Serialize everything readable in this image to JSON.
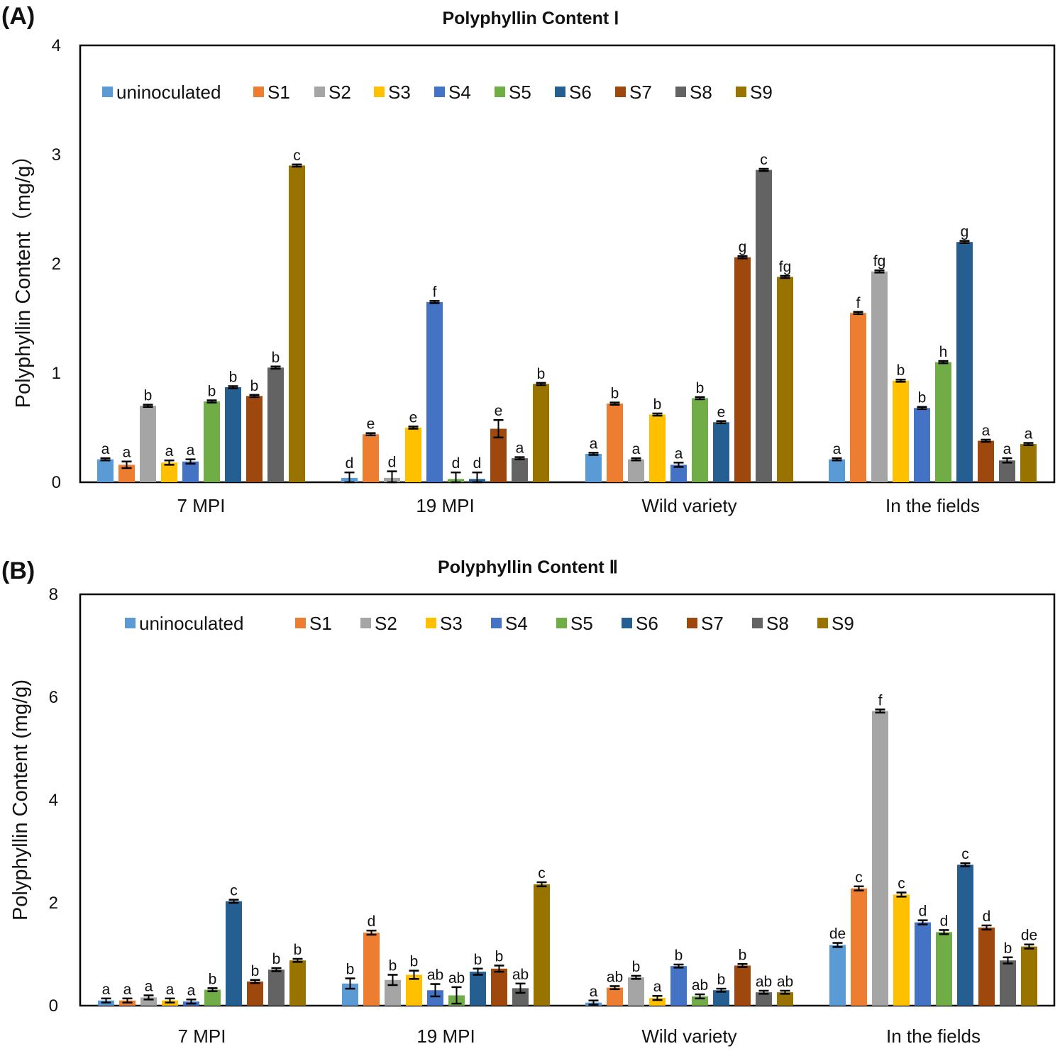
{
  "panels": [
    {
      "label": "(A)"
    },
    {
      "label": "(B)"
    }
  ],
  "chart_data": [
    {
      "type": "bar",
      "title": "Polyphyllin Content Ⅰ",
      "xlabel": "",
      "ylabel": "Polyphyllin Content（mg/g）",
      "ylim": [
        0,
        4
      ],
      "yticks": [
        "0",
        "1",
        "2",
        "3",
        "4"
      ],
      "ytick_values": [
        0,
        1,
        2,
        3,
        4
      ],
      "legend_position": "top",
      "grid": false,
      "categories": [
        "7 MPI",
        "19 MPI",
        "Wild variety",
        "In the fields"
      ],
      "series": [
        {
          "name": "uninoculated",
          "color": "#5B9BD5",
          "values": [
            0.21,
            0.04,
            0.26,
            0.21
          ],
          "errors": [
            0.01,
            0.05,
            0.01,
            0.01
          ],
          "labels": [
            "a",
            "d",
            "a",
            "a"
          ]
        },
        {
          "name": "S1",
          "color": "#ED7D31",
          "values": [
            0.16,
            0.44,
            0.72,
            1.55
          ],
          "errors": [
            0.03,
            0.01,
            0.01,
            0.01
          ],
          "labels": [
            "a",
            "e",
            "b",
            "f"
          ]
        },
        {
          "name": "S2",
          "color": "#A5A5A5",
          "values": [
            0.7,
            0.04,
            0.21,
            1.93
          ],
          "errors": [
            0.01,
            0.06,
            0.01,
            0.01
          ],
          "labels": [
            "b",
            "d",
            "a",
            "fg"
          ]
        },
        {
          "name": "S3",
          "color": "#FFC000",
          "values": [
            0.18,
            0.5,
            0.62,
            0.93
          ],
          "errors": [
            0.02,
            0.01,
            0.01,
            0.01
          ],
          "labels": [
            "a",
            "e",
            "b",
            "b"
          ]
        },
        {
          "name": "S4",
          "color": "#4472C4",
          "values": [
            0.19,
            1.65,
            0.16,
            0.68
          ],
          "errors": [
            0.02,
            0.01,
            0.02,
            0.01
          ],
          "labels": [
            "a",
            "f",
            "a",
            "b"
          ]
        },
        {
          "name": "S5",
          "color": "#70AD47",
          "values": [
            0.74,
            0.03,
            0.77,
            1.1
          ],
          "errors": [
            0.01,
            0.06,
            0.01,
            0.01
          ],
          "labels": [
            "b",
            "d",
            "b",
            "h"
          ]
        },
        {
          "name": "S6",
          "color": "#255E91",
          "values": [
            0.87,
            0.03,
            0.55,
            2.2
          ],
          "errors": [
            0.01,
            0.06,
            0.01,
            0.01
          ],
          "labels": [
            "b",
            "d",
            "e",
            "g"
          ]
        },
        {
          "name": "S7",
          "color": "#9E480E",
          "values": [
            0.79,
            0.49,
            2.06,
            0.38
          ],
          "errors": [
            0.01,
            0.08,
            0.01,
            0.01
          ],
          "labels": [
            "b",
            "e",
            "g",
            "a"
          ]
        },
        {
          "name": "S8",
          "color": "#636363",
          "values": [
            1.05,
            0.22,
            2.86,
            0.2
          ],
          "errors": [
            0.01,
            0.01,
            0.01,
            0.02
          ],
          "labels": [
            "b",
            "a",
            "c",
            "a"
          ]
        },
        {
          "name": "S9",
          "color": "#997300",
          "values": [
            2.9,
            0.9,
            1.88,
            0.35
          ],
          "errors": [
            0.01,
            0.01,
            0.01,
            0.01
          ],
          "labels": [
            "c",
            "b",
            "fg",
            "a"
          ]
        }
      ]
    },
    {
      "type": "bar",
      "title": "Polyphyllin Content  Ⅱ",
      "xlabel": "",
      "ylabel": "Polyphyllin Content (mg/g)",
      "ylim": [
        0,
        8
      ],
      "yticks": [
        "0",
        "2",
        "4",
        "6",
        "8"
      ],
      "ytick_values": [
        0,
        2,
        4,
        6,
        8
      ],
      "legend_position": "top",
      "grid": false,
      "categories": [
        "7 MPI",
        "19 MPI",
        "Wild variety",
        "In the fields"
      ],
      "series": [
        {
          "name": "uninoculated",
          "color": "#5B9BD5",
          "values": [
            0.1,
            0.43,
            0.06,
            1.18
          ],
          "errors": [
            0.04,
            0.1,
            0.04,
            0.04
          ],
          "labels": [
            "a",
            "b",
            "a",
            "de"
          ]
        },
        {
          "name": "S1",
          "color": "#ED7D31",
          "values": [
            0.1,
            1.42,
            0.35,
            2.28
          ],
          "errors": [
            0.04,
            0.04,
            0.03,
            0.04
          ],
          "labels": [
            "a",
            "d",
            "ab",
            "c"
          ]
        },
        {
          "name": "S2",
          "color": "#A5A5A5",
          "values": [
            0.16,
            0.5,
            0.55,
            5.73
          ],
          "errors": [
            0.04,
            0.1,
            0.03,
            0.03
          ],
          "labels": [
            "a",
            "b",
            "b",
            "f"
          ]
        },
        {
          "name": "S3",
          "color": "#FFC000",
          "values": [
            0.1,
            0.6,
            0.15,
            2.16
          ],
          "errors": [
            0.04,
            0.08,
            0.04,
            0.04
          ],
          "labels": [
            "a",
            "b",
            "a",
            "c"
          ]
        },
        {
          "name": "S4",
          "color": "#4472C4",
          "values": [
            0.08,
            0.3,
            0.77,
            1.62
          ],
          "errors": [
            0.04,
            0.12,
            0.03,
            0.04
          ],
          "labels": [
            "a",
            "ab",
            "b",
            "d"
          ]
        },
        {
          "name": "S5",
          "color": "#70AD47",
          "values": [
            0.31,
            0.2,
            0.18,
            1.43
          ],
          "errors": [
            0.03,
            0.16,
            0.04,
            0.04
          ],
          "labels": [
            "b",
            "ab",
            "ab",
            "d"
          ]
        },
        {
          "name": "S6",
          "color": "#255E91",
          "values": [
            2.03,
            0.66,
            0.3,
            2.74
          ],
          "errors": [
            0.03,
            0.06,
            0.03,
            0.03
          ],
          "labels": [
            "c",
            "b",
            "b",
            "c"
          ]
        },
        {
          "name": "S7",
          "color": "#9E480E",
          "values": [
            0.47,
            0.72,
            0.78,
            1.52
          ],
          "errors": [
            0.03,
            0.06,
            0.03,
            0.04
          ],
          "labels": [
            "b",
            "b",
            "b",
            "d"
          ]
        },
        {
          "name": "S8",
          "color": "#636363",
          "values": [
            0.7,
            0.34,
            0.26,
            0.88
          ],
          "errors": [
            0.03,
            0.09,
            0.03,
            0.06
          ],
          "labels": [
            "b",
            "ab",
            "ab",
            "b"
          ]
        },
        {
          "name": "S9",
          "color": "#997300",
          "values": [
            0.88,
            2.36,
            0.26,
            1.15
          ],
          "errors": [
            0.03,
            0.04,
            0.03,
            0.04
          ],
          "labels": [
            "b",
            "c",
            "ab",
            "de"
          ]
        }
      ]
    }
  ]
}
